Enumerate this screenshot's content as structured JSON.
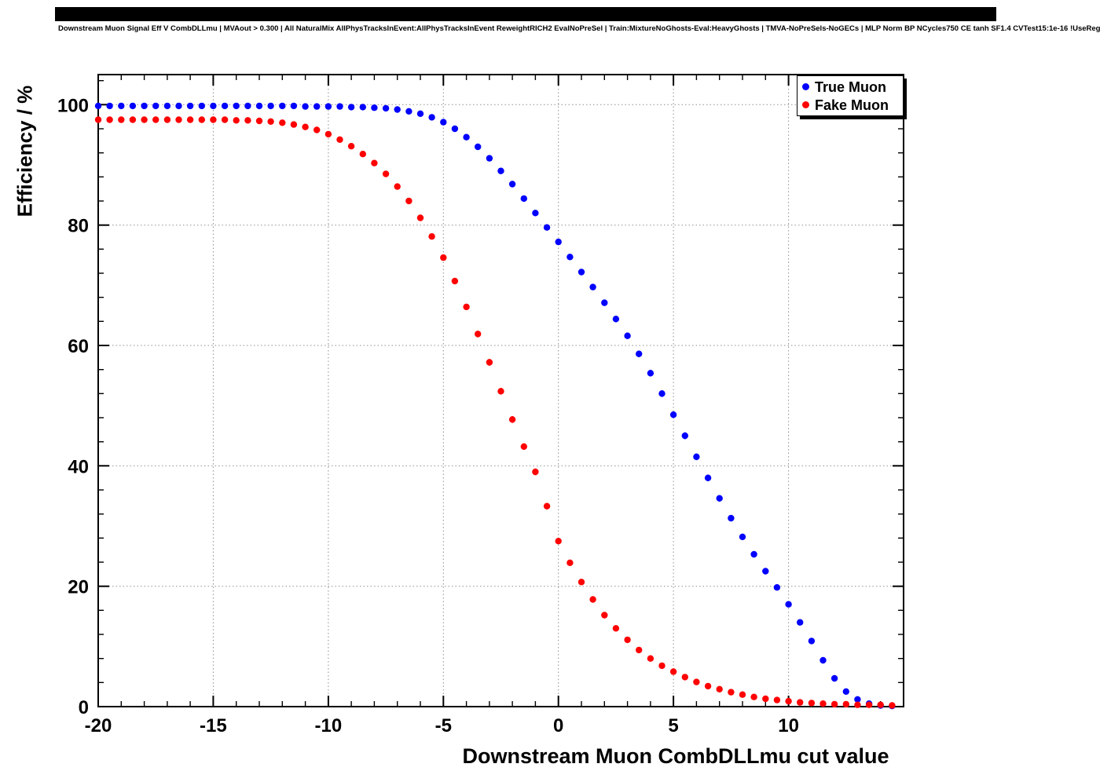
{
  "title": "Downstream Muon Signal Eff V CombDLLmu | MVAout > 0.300 | All NaturalMix AllPhysTracksInEvent:AllPhysTracksInEvent ReweightRICH2 EvalNoPreSel | Train:MixtureNoGhosts-Eval:HeavyGhosts | TMVA-NoPreSels-NoGECs | MLP Norm BP NCycles750 CE tanh SF1.4 CVTest15:1e-16 !UseReg",
  "chart_data": {
    "type": "scatter",
    "title": "Downstream Muon Signal Eff V CombDLLmu",
    "xlabel": "Downstream Muon CombDLLmu cut value",
    "ylabel": "Efficiency / %",
    "xlim": [
      -20,
      15
    ],
    "ylim": [
      0,
      105
    ],
    "x_ticks": [
      -20,
      -15,
      -10,
      -5,
      0,
      5,
      10
    ],
    "x_tick_labels": [
      "-20",
      "-15",
      "-10",
      "-5",
      "0",
      "5",
      "10"
    ],
    "y_ticks": [
      0,
      20,
      40,
      60,
      80,
      100
    ],
    "y_tick_labels": [
      "0",
      "20",
      "40",
      "60",
      "80",
      "100"
    ],
    "x_minor_step": 1,
    "y_minor_step": 4,
    "grid": true,
    "grid_style": "dotted",
    "legend_position": "top-right",
    "marker": "filled-circle",
    "error_n": 8000,
    "x_start": -20,
    "x_step": 0.5,
    "series": [
      {
        "name": "True Muon",
        "color": "#0000ff",
        "values": [
          99.8,
          99.8,
          99.8,
          99.8,
          99.8,
          99.8,
          99.8,
          99.8,
          99.8,
          99.8,
          99.8,
          99.8,
          99.8,
          99.8,
          99.8,
          99.8,
          99.8,
          99.8,
          99.7,
          99.7,
          99.7,
          99.7,
          99.6,
          99.6,
          99.5,
          99.4,
          99.2,
          98.9,
          98.5,
          97.9,
          97.1,
          96.0,
          94.6,
          93.0,
          91.1,
          89.0,
          86.8,
          84.4,
          82.0,
          79.6,
          77.2,
          74.7,
          72.2,
          69.7,
          67.1,
          64.4,
          61.6,
          58.6,
          55.4,
          52.0,
          48.5,
          45.0,
          41.5,
          38.0,
          34.6,
          31.3,
          28.2,
          25.3,
          22.5,
          19.8,
          17.0,
          14.0,
          10.9,
          7.7,
          4.7,
          2.5,
          1.2,
          0.5,
          0.2,
          0.1
        ]
      },
      {
        "name": "Fake Muon",
        "color": "#ff0000",
        "values": [
          97.5,
          97.5,
          97.5,
          97.5,
          97.5,
          97.5,
          97.5,
          97.5,
          97.5,
          97.5,
          97.5,
          97.5,
          97.4,
          97.4,
          97.3,
          97.2,
          97.0,
          96.7,
          96.3,
          95.8,
          95.1,
          94.2,
          93.1,
          91.8,
          90.3,
          88.5,
          86.4,
          84.0,
          81.2,
          78.1,
          74.6,
          70.7,
          66.4,
          61.9,
          57.2,
          52.4,
          47.7,
          43.2,
          39.0,
          33.3,
          27.5,
          23.9,
          20.7,
          17.8,
          15.2,
          13.0,
          11.1,
          9.4,
          8.0,
          6.8,
          5.8,
          4.9,
          4.1,
          3.4,
          2.9,
          2.4,
          2.0,
          1.6,
          1.3,
          1.1,
          0.9,
          0.7,
          0.6,
          0.5,
          0.4,
          0.4,
          0.3,
          0.3,
          0.3,
          0.2
        ]
      }
    ]
  },
  "colors": {
    "frame": "#000000",
    "grid": "#8f8f8f",
    "background": "#ffffff",
    "true_muon": "#0000ff",
    "fake_muon": "#ff0000"
  }
}
